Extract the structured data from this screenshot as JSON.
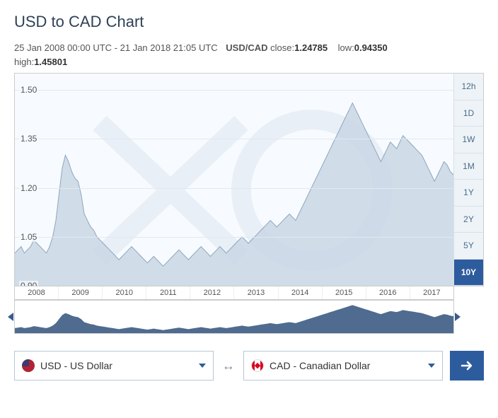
{
  "title": "USD to CAD Chart",
  "meta": {
    "start": "25 Jan 2008 00:00 UTC",
    "end": "21 Jan 2018 21:05 UTC",
    "pair": "USD/CAD",
    "close_label": "close:",
    "close": "1.24785",
    "low_label": "low:",
    "low": "0.94350",
    "high_label": "high:",
    "high": "1.45801"
  },
  "chart": {
    "type": "area",
    "background_color": "#f7fbff",
    "line_color": "#8ea5bd",
    "fill_color": "#c9d6e4",
    "grid_color": "#e2e8f0",
    "ylim": [
      0.9,
      1.55
    ],
    "yticks": [
      0.9,
      1.05,
      1.2,
      1.35,
      1.5
    ],
    "xlabels": [
      "2008",
      "2009",
      "2010",
      "2011",
      "2012",
      "2013",
      "2014",
      "2015",
      "2016",
      "2017"
    ],
    "series": [
      1.0,
      1.01,
      1.02,
      1.0,
      1.01,
      1.02,
      1.04,
      1.03,
      1.02,
      1.01,
      1.0,
      1.02,
      1.05,
      1.1,
      1.18,
      1.26,
      1.3,
      1.28,
      1.25,
      1.23,
      1.22,
      1.18,
      1.12,
      1.1,
      1.08,
      1.07,
      1.05,
      1.04,
      1.03,
      1.02,
      1.01,
      1.0,
      0.99,
      0.98,
      0.99,
      1.0,
      1.01,
      1.02,
      1.01,
      1.0,
      0.99,
      0.98,
      0.97,
      0.98,
      0.99,
      0.98,
      0.97,
      0.96,
      0.97,
      0.98,
      0.99,
      1.0,
      1.01,
      1.0,
      0.99,
      0.98,
      0.99,
      1.0,
      1.01,
      1.02,
      1.01,
      1.0,
      0.99,
      1.0,
      1.01,
      1.02,
      1.01,
      1.0,
      1.01,
      1.02,
      1.03,
      1.04,
      1.05,
      1.04,
      1.03,
      1.04,
      1.05,
      1.06,
      1.07,
      1.08,
      1.09,
      1.1,
      1.09,
      1.08,
      1.09,
      1.1,
      1.11,
      1.12,
      1.11,
      1.1,
      1.12,
      1.14,
      1.16,
      1.18,
      1.2,
      1.22,
      1.24,
      1.26,
      1.28,
      1.3,
      1.32,
      1.34,
      1.36,
      1.38,
      1.4,
      1.42,
      1.44,
      1.46,
      1.44,
      1.42,
      1.4,
      1.38,
      1.36,
      1.34,
      1.32,
      1.3,
      1.28,
      1.3,
      1.32,
      1.34,
      1.33,
      1.32,
      1.34,
      1.36,
      1.35,
      1.34,
      1.33,
      1.32,
      1.31,
      1.3,
      1.28,
      1.26,
      1.24,
      1.22,
      1.24,
      1.26,
      1.28,
      1.27,
      1.25,
      1.24
    ]
  },
  "mini": {
    "fill_color": "#4f6b8f",
    "background": "#ffffff"
  },
  "ranges": [
    {
      "label": "12h",
      "active": false
    },
    {
      "label": "1D",
      "active": false
    },
    {
      "label": "1W",
      "active": false
    },
    {
      "label": "1M",
      "active": false
    },
    {
      "label": "1Y",
      "active": false
    },
    {
      "label": "2Y",
      "active": false
    },
    {
      "label": "5Y",
      "active": false
    },
    {
      "label": "10Y",
      "active": true
    }
  ],
  "currency_from": {
    "code": "USD",
    "name": "US Dollar",
    "flag": "us"
  },
  "currency_to": {
    "code": "CAD",
    "name": "Canadian Dollar",
    "flag": "ca"
  },
  "swap_glyph": "↔"
}
